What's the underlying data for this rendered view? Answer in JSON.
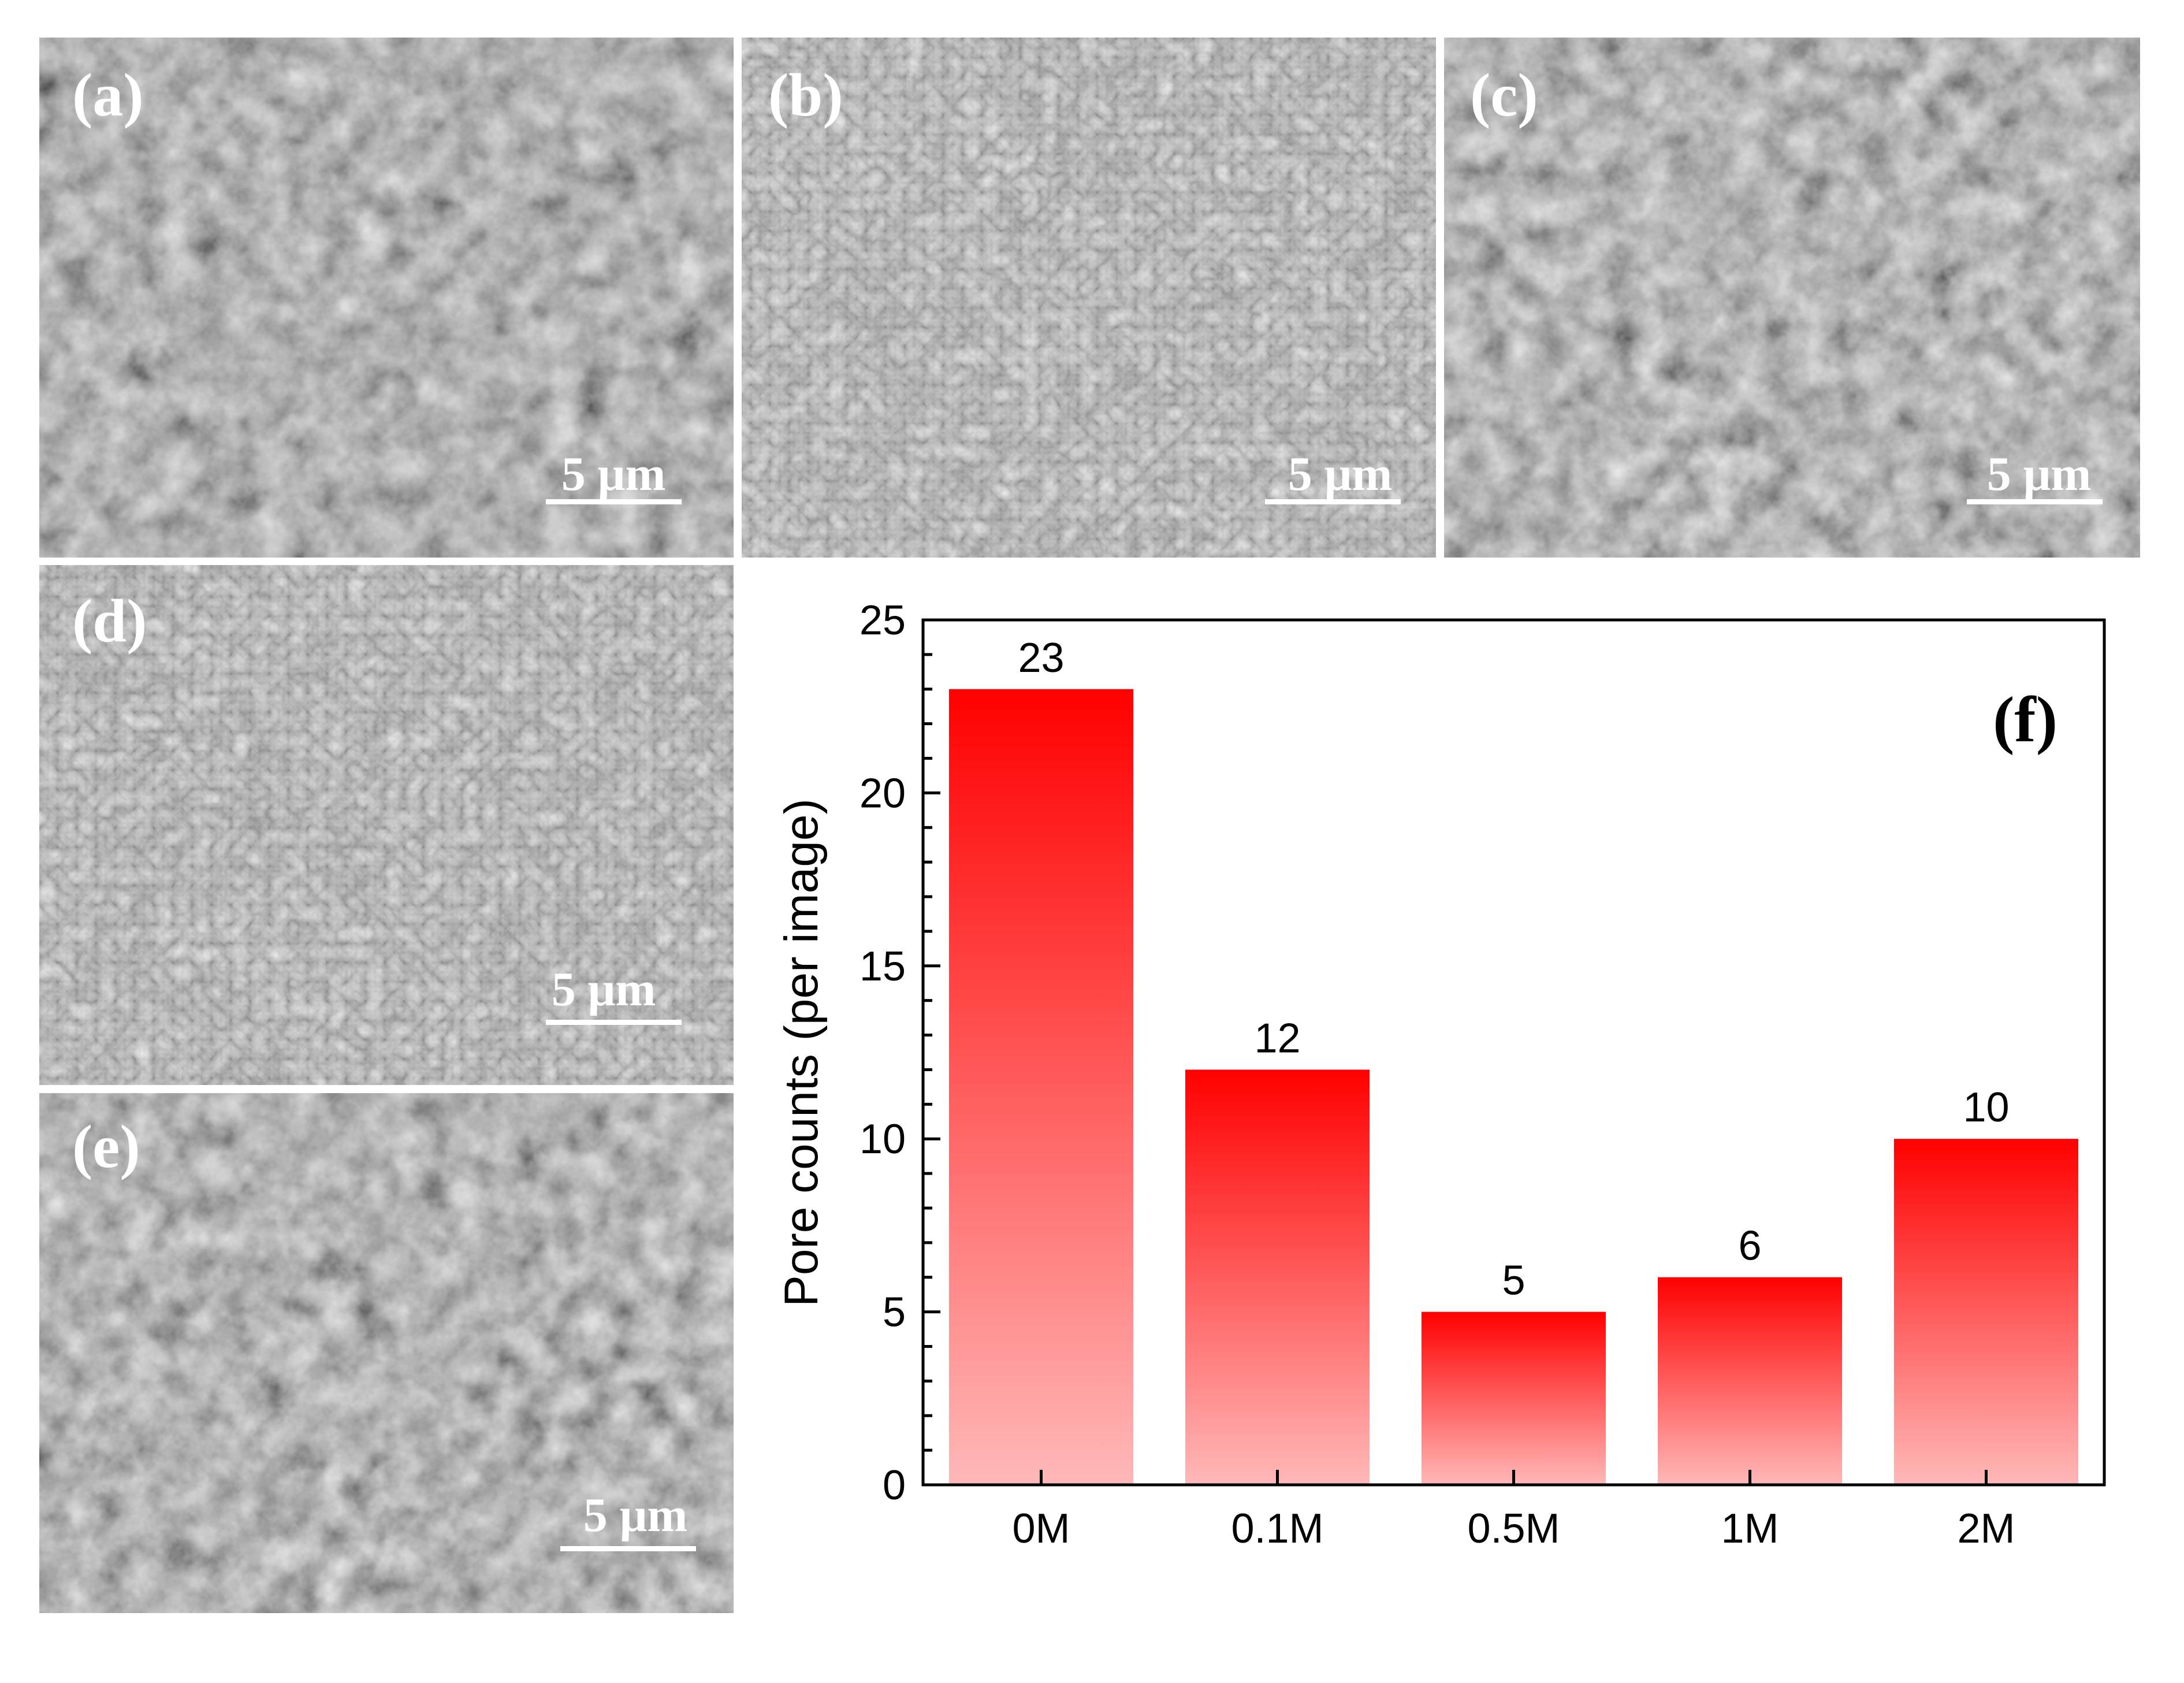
{
  "figure": {
    "panels": [
      {
        "label": "(a)",
        "scale_bar": "5 μm"
      },
      {
        "label": "(b)",
        "scale_bar": "5 μm"
      },
      {
        "label": "(c)",
        "scale_bar": "5 μm"
      },
      {
        "label": "(d)",
        "scale_bar": "5 μm"
      },
      {
        "label": "(e)",
        "scale_bar": "5 μm"
      }
    ]
  },
  "colors": {
    "bar_top": "#ff0000",
    "bar_bottom": "#ffb8b8",
    "sem_base": "#7a7a7a"
  },
  "chart_data": {
    "type": "bar",
    "panel_label": "(f)",
    "categories": [
      "0M",
      "0.1M",
      "0.5M",
      "1M",
      "2M"
    ],
    "values": [
      23,
      12,
      5,
      6,
      10
    ],
    "data_labels": [
      "23",
      "12",
      "5",
      "6",
      "10"
    ],
    "xlabel": "",
    "ylabel": "Pore counts (per image)",
    "ylim": [
      0,
      25
    ],
    "yticks": [
      "0",
      "5",
      "10",
      "15",
      "20",
      "25"
    ],
    "grid": false,
    "legend": "none"
  }
}
